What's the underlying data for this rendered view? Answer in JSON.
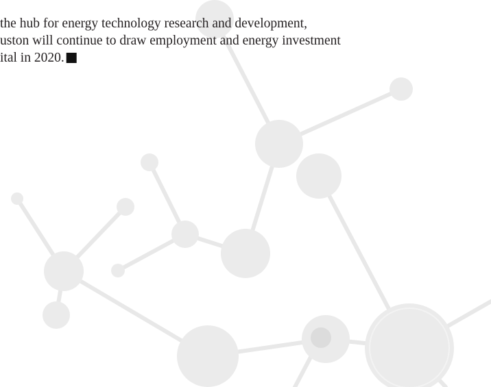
{
  "paragraph": {
    "lines": [
      "the hub for energy technology research and development,",
      "uston will continue to draw employment and energy investment",
      "ital in 2020."
    ]
  }
}
